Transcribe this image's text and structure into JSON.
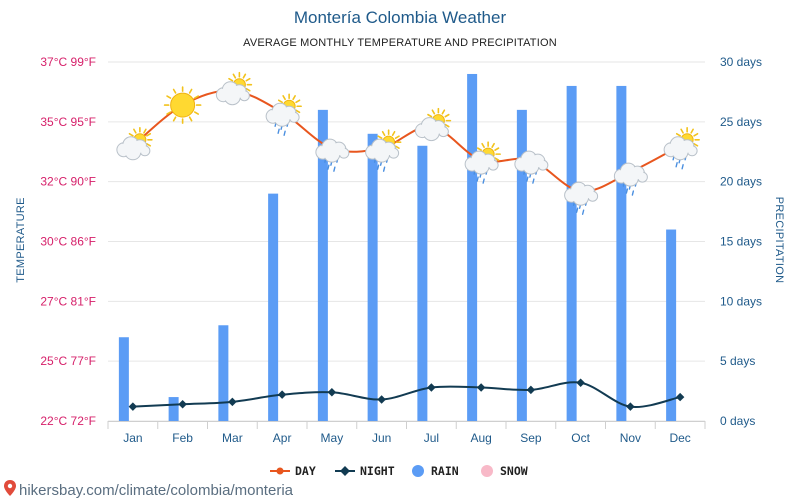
{
  "header": {
    "title": "Montería Colombia Weather",
    "subtitle": "AVERAGE MONTHLY TEMPERATURE AND PRECIPITATION"
  },
  "source": {
    "text": "hikersbay.com/climate/colombia/monteria"
  },
  "colors": {
    "day": "#e8561e",
    "night": "#123b52",
    "rain": "#5b9cf5",
    "snow": "#f8b9c8",
    "left_axis": "#d6206a",
    "right_axis": "#1f5a8a",
    "grid": "#e6e6e6"
  },
  "chart_data": {
    "type": "bar",
    "title": "Montería Colombia Weather",
    "subtitle": "AVERAGE MONTHLY TEMPERATURE AND PRECIPITATION",
    "categories": [
      "Jan",
      "Feb",
      "Mar",
      "Apr",
      "May",
      "Jun",
      "Jul",
      "Aug",
      "Sep",
      "Oct",
      "Nov",
      "Dec"
    ],
    "y_left": {
      "label": "TEMPERATURE",
      "range_c": [
        22,
        37
      ],
      "ticks": [
        {
          "c": 37,
          "label": "37°C 99°F"
        },
        {
          "c": 34.5,
          "label": "35°C 95°F"
        },
        {
          "c": 32,
          "label": "32°C 90°F"
        },
        {
          "c": 29.5,
          "label": "30°C 86°F"
        },
        {
          "c": 27,
          "label": "27°C 81°F"
        },
        {
          "c": 24.5,
          "label": "25°C 77°F"
        },
        {
          "c": 22,
          "label": "22°C 72°F"
        }
      ]
    },
    "y_right": {
      "label": "PRECIPITATION",
      "range_days": [
        0,
        30
      ],
      "ticks": [
        {
          "v": 30,
          "label": "30 days"
        },
        {
          "v": 25,
          "label": "25 days"
        },
        {
          "v": 20,
          "label": "20 days"
        },
        {
          "v": 15,
          "label": "15 days"
        },
        {
          "v": 10,
          "label": "10 days"
        },
        {
          "v": 5,
          "label": "5 days"
        },
        {
          "v": 0,
          "label": "0 days"
        }
      ]
    },
    "series": [
      {
        "name": "DAY",
        "type": "line",
        "axis": "left",
        "values": [
          33.5,
          35.2,
          35.8,
          34.9,
          33.4,
          33.4,
          34.3,
          32.9,
          32.9,
          31.6,
          32.4,
          33.5
        ]
      },
      {
        "name": "NIGHT",
        "type": "line",
        "axis": "left",
        "values": [
          22.6,
          22.7,
          22.8,
          23.1,
          23.2,
          22.9,
          23.4,
          23.4,
          23.3,
          23.6,
          22.6,
          23.0
        ]
      },
      {
        "name": "RAIN",
        "type": "bar",
        "axis": "right",
        "values": [
          7,
          2,
          8,
          19,
          26,
          24,
          23,
          29,
          26,
          28,
          28,
          16
        ]
      },
      {
        "name": "SNOW",
        "type": "bar",
        "axis": "right",
        "values": [
          0,
          0,
          0,
          0,
          0,
          0,
          0,
          0,
          0,
          0,
          0,
          0
        ]
      }
    ],
    "weather_icons": [
      "sun-cloud",
      "sun",
      "sun-cloud",
      "sun-cloud-rain",
      "cloud-rain",
      "sun-cloud-rain",
      "sun-cloud",
      "sun-cloud-rain",
      "cloud-rain",
      "cloud-rain",
      "cloud-rain",
      "sun-cloud-rain"
    ],
    "legend": [
      "DAY",
      "NIGHT",
      "RAIN",
      "SNOW"
    ],
    "legend_position": "bottom",
    "grid": true
  }
}
